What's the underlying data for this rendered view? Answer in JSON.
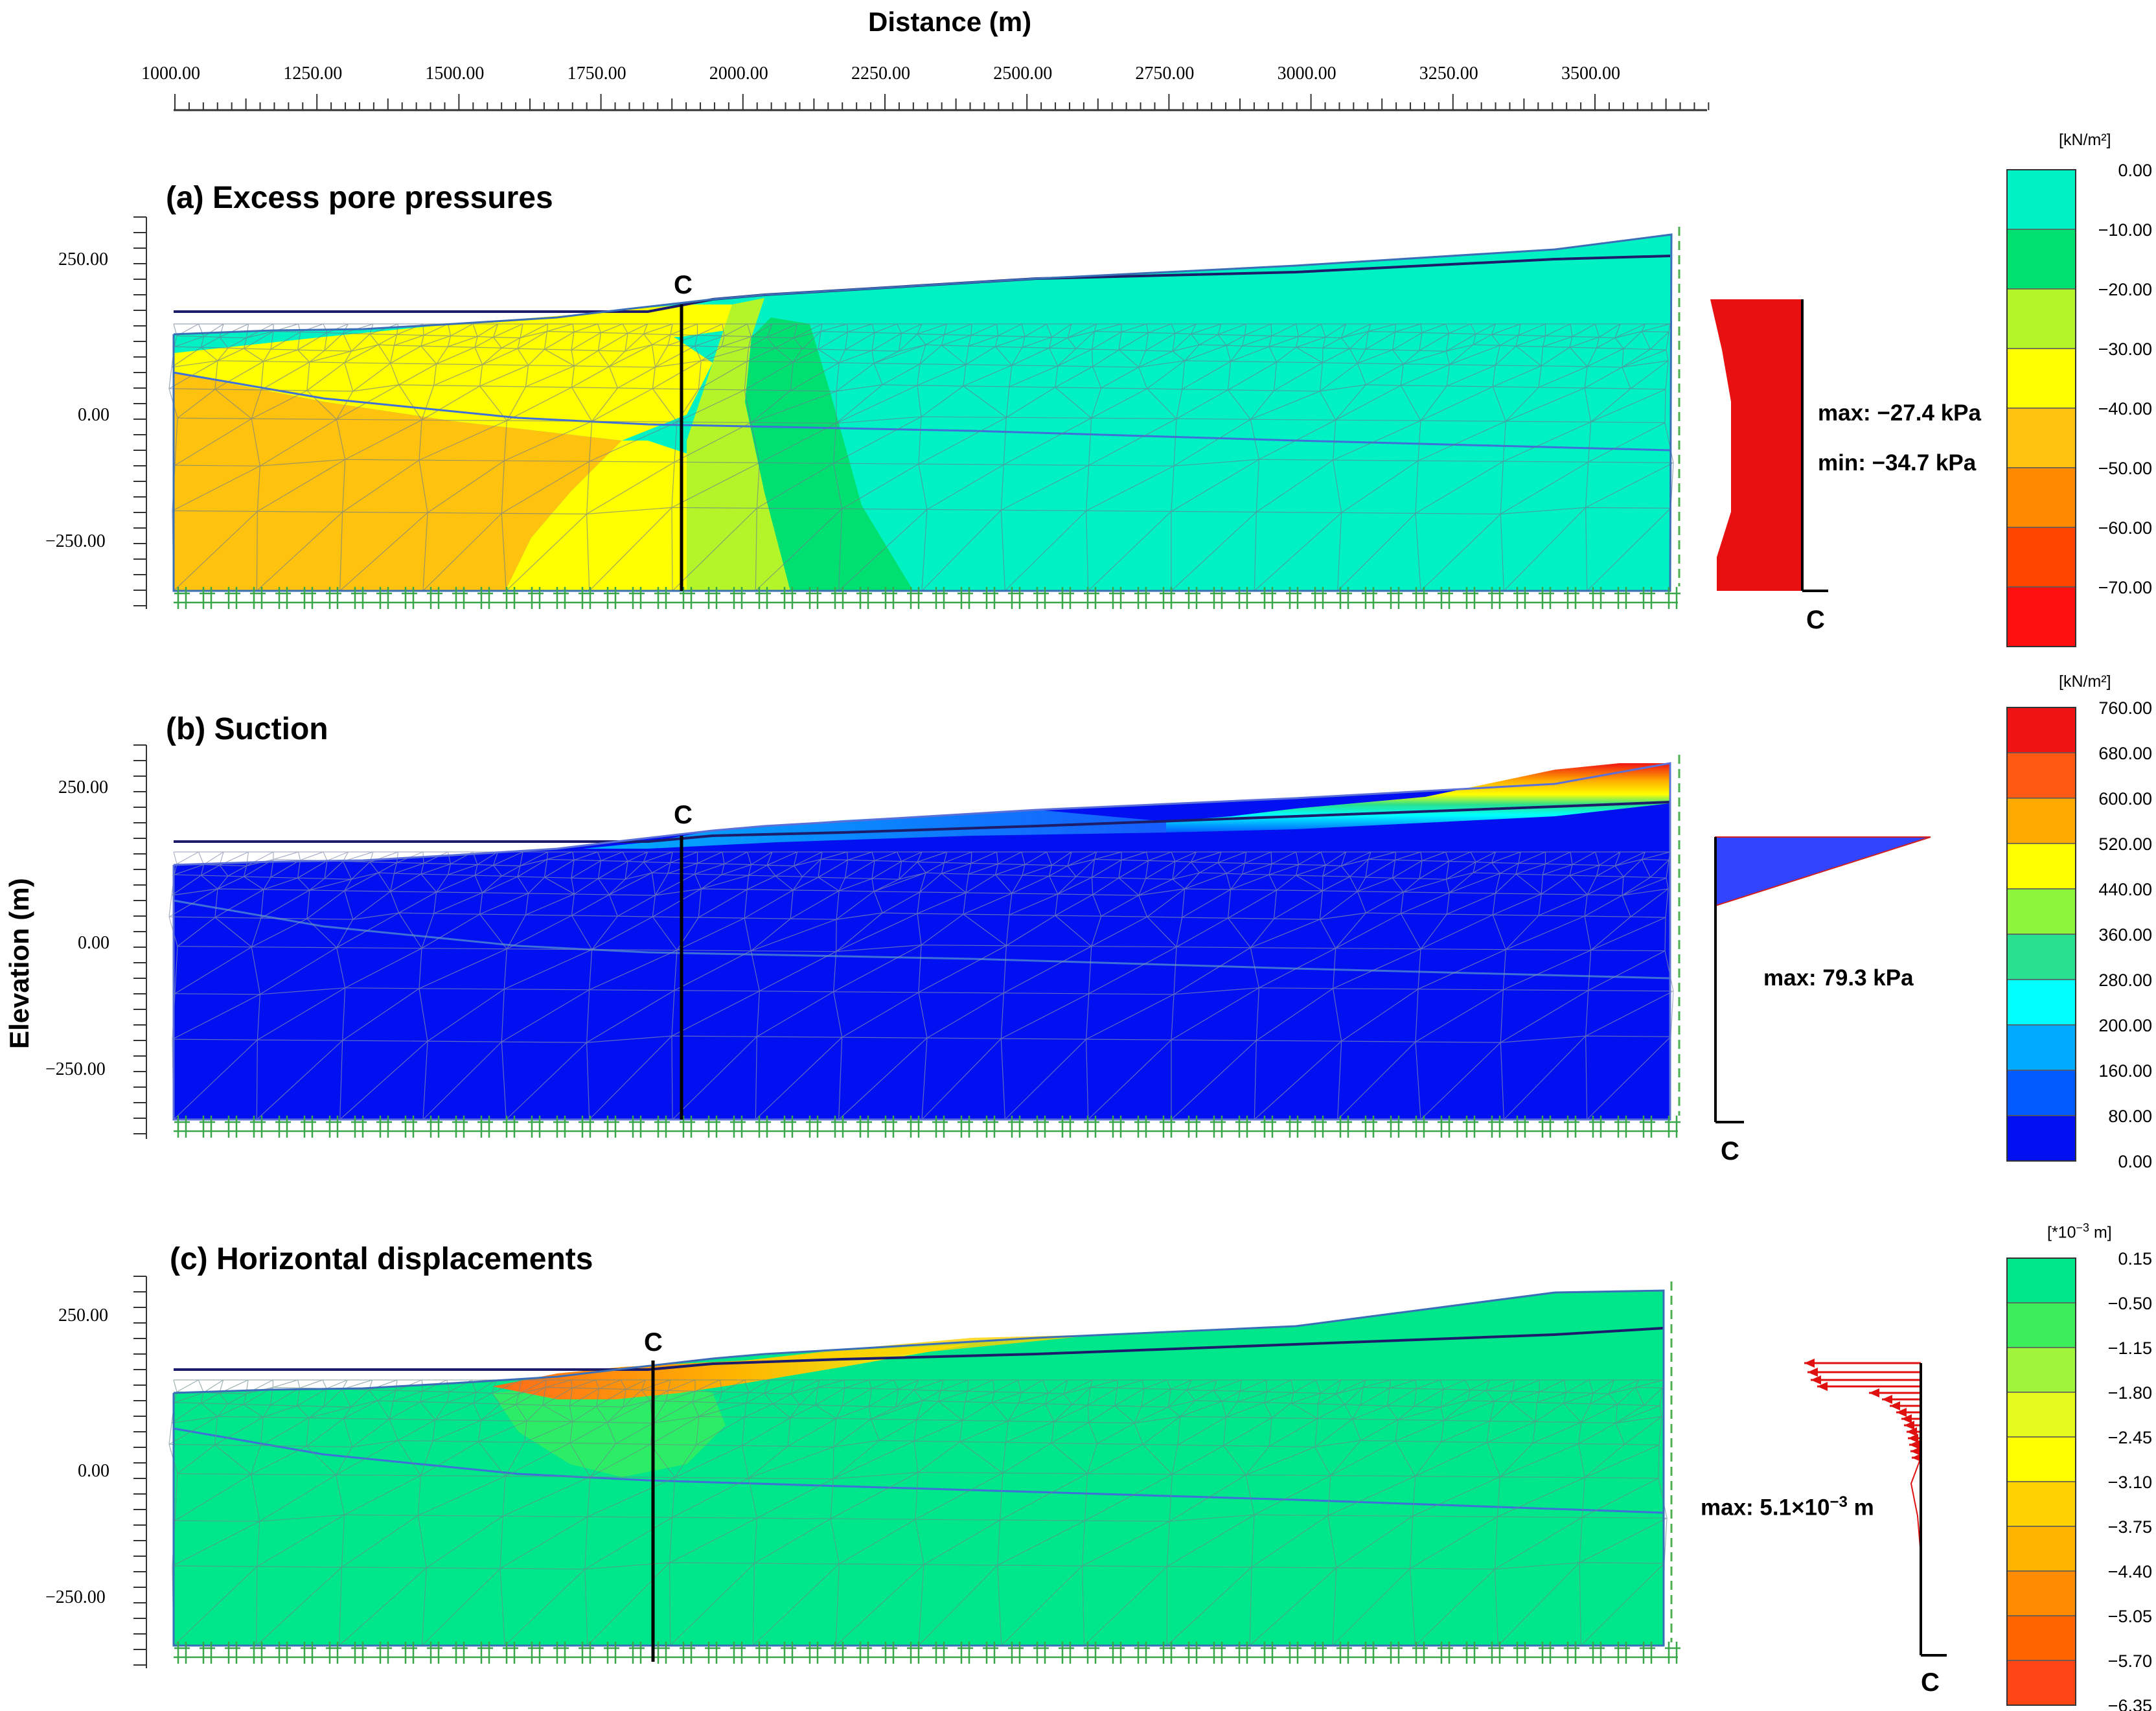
{
  "distance_axis": {
    "title": "Distance (m)",
    "ticks": [
      "1000.00",
      "1250.00",
      "1500.00",
      "1750.00",
      "2000.00",
      "2250.00",
      "2500.00",
      "2750.00",
      "3000.00",
      "3250.00",
      "3500.00"
    ]
  },
  "elevation_axis": {
    "title": "Elevation (m)",
    "ticks": [
      "250.00",
      "0.00",
      "−250.00"
    ]
  },
  "section_label": "C",
  "panels": [
    {
      "title": "(a) Excess pore pressures",
      "annotations": [
        "max: −27.4 kPa",
        "min: −34.7 kPa"
      ],
      "legend": {
        "unit": "[kN/m²]",
        "ticks": [
          "0.00",
          "−10.00",
          "−20.00",
          "−30.00",
          "−40.00",
          "−50.00",
          "−60.00",
          "−70.00"
        ],
        "colors": [
          "#00f2c4",
          "#00e070",
          "#b4f52a",
          "#ffff00",
          "#ffc20e",
          "#ff8a00",
          "#ff4500",
          "#ff1010"
        ]
      }
    },
    {
      "title": "(b) Suction",
      "annotations": [
        "max: 79.3 kPa"
      ],
      "legend": {
        "unit": "[kN/m²]",
        "ticks": [
          "760.00",
          "680.00",
          "600.00",
          "520.00",
          "440.00",
          "360.00",
          "280.00",
          "200.00",
          "160.00",
          "80.00",
          "0.00"
        ],
        "colors": [
          "#f01414",
          "#ff5a14",
          "#ffaa00",
          "#ffff00",
          "#8cf53c",
          "#28e090",
          "#00ffff",
          "#00aaff",
          "#005aff",
          "#0010f0"
        ]
      }
    },
    {
      "title": "(c) Horizontal displacements",
      "annotations": [
        "max: 5.1×10",
        "−3",
        " m"
      ],
      "legend": {
        "unit": "[*10",
        "unit_exp": "−3",
        "unit_tail": " m]",
        "ticks": [
          "0.15",
          "−0.50",
          "−1.15",
          "−1.80",
          "−2.45",
          "−3.10",
          "−3.75",
          "−4.40",
          "−5.05",
          "−5.70",
          "−6.35"
        ],
        "colors": [
          "#00e68a",
          "#3cef5a",
          "#a0f53c",
          "#e6fa1e",
          "#ffff00",
          "#ffd200",
          "#ffb400",
          "#ff8c00",
          "#ff6400",
          "#ff4614"
        ]
      }
    }
  ]
}
